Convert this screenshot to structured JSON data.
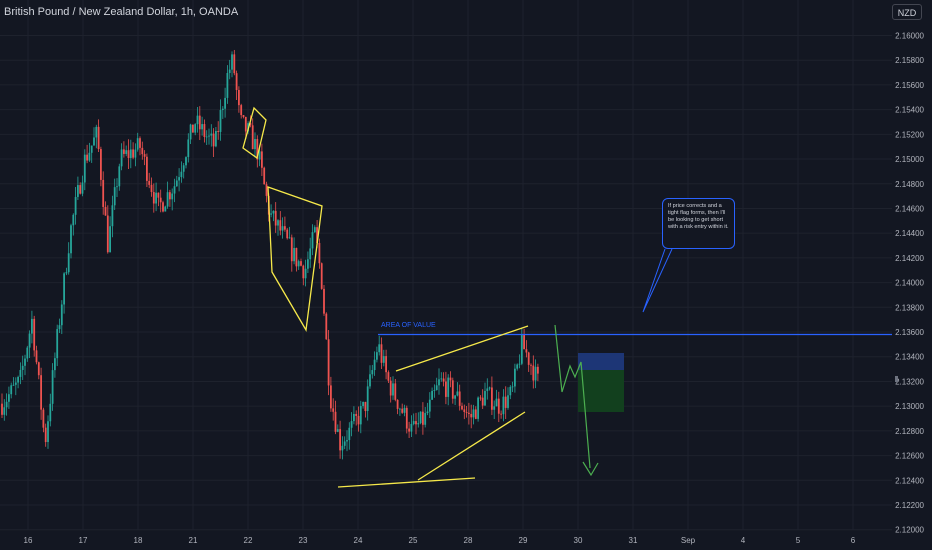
{
  "header": {
    "title": "British Pound / New Zealand Dollar, 1h, OANDA",
    "currency": "NZD"
  },
  "chart_data": {
    "type": "candlestick",
    "symbol": "British Pound / New Zealand Dollar",
    "interval": "1h",
    "exchange": "OANDA",
    "y_axis": {
      "ylim": [
        2.119,
        2.1618
      ],
      "ticks": [
        "2.16000",
        "2.15800",
        "2.15600",
        "2.15400",
        "2.15200",
        "2.15000",
        "2.14800",
        "2.14600",
        "2.14400",
        "2.14200",
        "2.14000",
        "2.13800",
        "2.13600",
        "2.13400",
        "2.13200",
        "2.13000",
        "2.12800",
        "2.12600",
        "2.12400",
        "2.12200",
        "2.12000"
      ]
    },
    "x_axis": {
      "labels": [
        "16",
        "17",
        "18",
        "21",
        "22",
        "23",
        "24",
        "25",
        "28",
        "29",
        "30",
        "31",
        "Sep",
        "4",
        "5",
        "6"
      ]
    },
    "colors": {
      "up": "#26a69a",
      "down": "#ef5350",
      "drawing": "#f6e94a",
      "level": "#2962ff",
      "projection": "#4caf50"
    },
    "area_of_value": {
      "label": "AREA OF VALUE",
      "price": 2.1358
    },
    "annotation": "If price corrects and a tight flag forms, then I'll be looking to get short with a risk entry within it."
  }
}
